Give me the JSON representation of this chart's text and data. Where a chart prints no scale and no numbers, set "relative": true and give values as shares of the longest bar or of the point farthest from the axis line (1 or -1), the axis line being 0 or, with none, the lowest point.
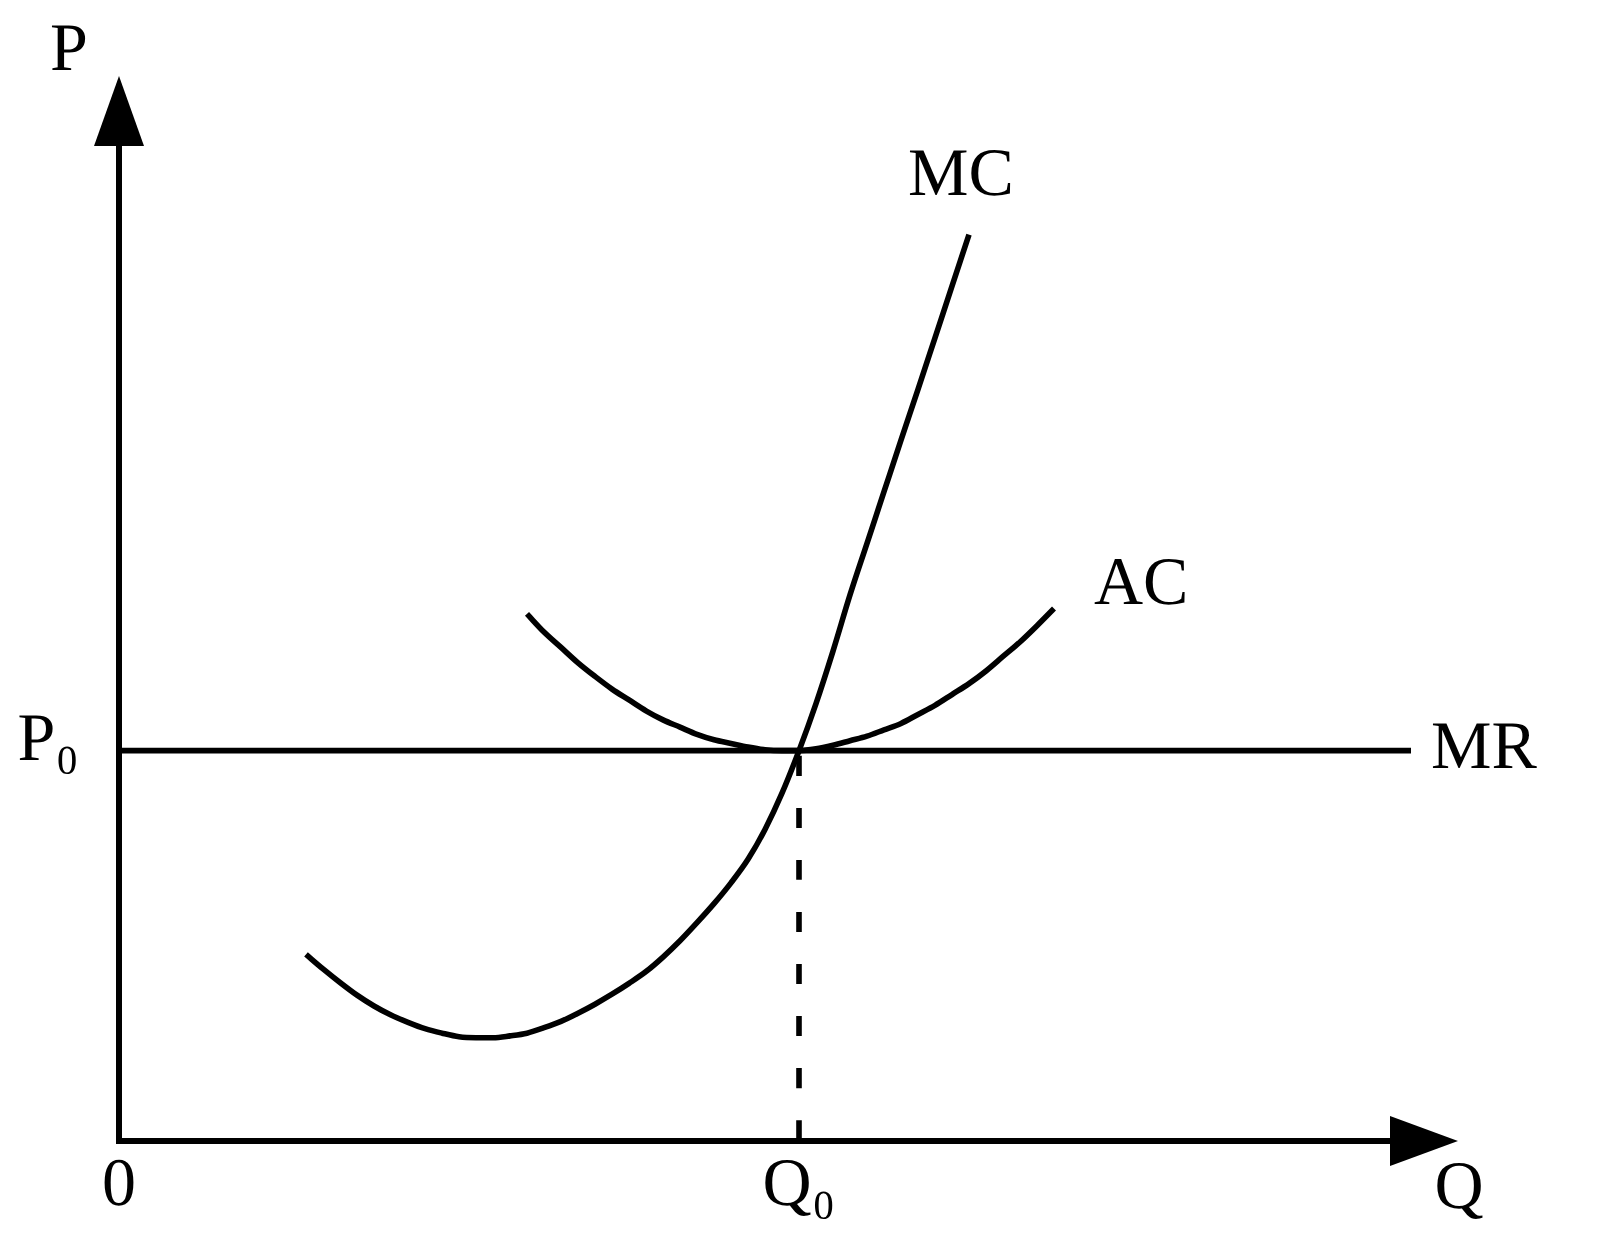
{
  "chart_data": {
    "type": "line",
    "xlabel": "Q",
    "ylabel": "P",
    "relative": true,
    "legend": false,
    "grid": false,
    "marker": "none",
    "categories": [
      "0",
      null,
      null,
      null,
      null,
      null,
      null,
      null,
      null,
      null,
      null,
      null,
      null,
      null,
      null,
      null,
      null,
      null,
      null,
      null,
      null,
      null,
      null,
      null,
      null,
      null,
      null,
      null,
      null,
      null,
      null,
      null,
      null,
      null,
      null,
      null,
      null,
      null,
      null,
      null,
      "Q₀",
      null,
      null,
      null,
      null,
      null,
      null,
      null,
      null,
      null,
      null,
      null,
      null,
      null,
      null,
      null,
      null,
      null,
      null,
      null,
      null,
      null,
      null,
      null,
      null,
      null,
      null,
      null,
      null,
      null,
      null,
      null,
      null,
      null,
      null,
      null,
      null
    ],
    "series": [
      {
        "name": "MC",
        "color": "#000000",
        "values": [
          null,
          null,
          null,
          null,
          null,
          null,
          null,
          null,
          null,
          null,
          null,
          0.205,
          0.189,
          0.174,
          0.16,
          0.148,
          0.138,
          0.13,
          0.123,
          0.118,
          0.114,
          0.113,
          0.113,
          0.115,
          0.118,
          0.124,
          0.131,
          0.14,
          0.15,
          0.161,
          0.173,
          0.186,
          0.202,
          0.22,
          0.24,
          0.261,
          0.284,
          0.31,
          0.343,
          0.383,
          0.43,
          0.482,
          0.54,
          0.602,
          0.659,
          0.716,
          0.773,
          0.829,
          0.886,
          0.943,
          1,
          null,
          null,
          null,
          null,
          null,
          null,
          null,
          null,
          null,
          null,
          null,
          null,
          null,
          null,
          null,
          null,
          null,
          null,
          null,
          null,
          null,
          null,
          null,
          null,
          null,
          null
        ]
      },
      {
        "name": "AC",
        "color": "#000000",
        "values": [
          null,
          null,
          null,
          null,
          null,
          null,
          null,
          null,
          null,
          null,
          null,
          null,
          null,
          null,
          null,
          null,
          null,
          null,
          null,
          null,
          null,
          null,
          null,
          null,
          0.581,
          0.561,
          0.544,
          0.527,
          0.512,
          0.498,
          0.486,
          0.474,
          0.464,
          0.456,
          0.448,
          0.442,
          0.438,
          0.434,
          0.431,
          0.43,
          0.43,
          0.432,
          0.436,
          0.441,
          0.446,
          0.453,
          0.46,
          0.47,
          0.48,
          0.492,
          0.504,
          0.518,
          0.534,
          0.55,
          0.568,
          0.587,
          null,
          null,
          null,
          null,
          null,
          null,
          null,
          null,
          null,
          null,
          null,
          null,
          null,
          null,
          null,
          null,
          null,
          null,
          null,
          null,
          null
        ]
      },
      {
        "name": "MR",
        "color": "#000000",
        "values": [
          0.43,
          0.43,
          0.43,
          0.43,
          0.43,
          0.43,
          0.43,
          0.43,
          0.43,
          0.43,
          0.43,
          0.43,
          0.43,
          0.43,
          0.43,
          0.43,
          0.43,
          0.43,
          0.43,
          0.43,
          0.43,
          0.43,
          0.43,
          0.43,
          0.43,
          0.43,
          0.43,
          0.43,
          0.43,
          0.43,
          0.43,
          0.43,
          0.43,
          0.43,
          0.43,
          0.43,
          0.43,
          0.43,
          0.43,
          0.43,
          0.43,
          0.43,
          0.43,
          0.43,
          0.43,
          0.43,
          0.43,
          0.43,
          0.43,
          0.43,
          0.43,
          0.43,
          0.43,
          0.43,
          0.43,
          0.43,
          0.43,
          0.43,
          0.43,
          0.43,
          0.43,
          0.43,
          0.43,
          0.43,
          0.43,
          0.43,
          0.43,
          0.43,
          0.43,
          0.43,
          0.43,
          0.43,
          0.43,
          0.43,
          0.43,
          0.43,
          0.43
        ]
      },
      {
        "type": "line",
        "color": "#000000",
        "line_style": "dashed",
        "x": [
          "Q₀",
          "Q₀"
        ],
        "values": [
          0,
          0.43
        ]
      }
    ],
    "annotations": [
      {
        "text": "P₀",
        "x": "0",
        "y": 0.43
      }
    ]
  }
}
